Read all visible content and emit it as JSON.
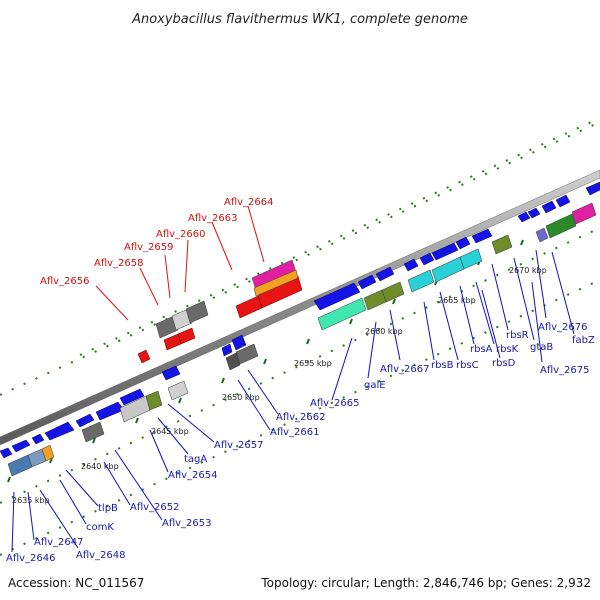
{
  "title": "Anoxybacillus flavithermus WK1, complete genome",
  "footer": {
    "accession": "Accession: NC_011567",
    "summary": "Topology: circular; Length: 2,846,746 bp; Genes: 2,932"
  },
  "ticks": [
    "2635 kbp",
    "2640 kbp",
    "2645 kbp",
    "2650 kbp",
    "2655 kbp",
    "2660 kbp",
    "2665 kbp",
    "2670 kbp"
  ],
  "labels_upper": [
    "Aflv_2656",
    "Aflv_2658",
    "Aflv_2659",
    "Aflv_2660",
    "Aflv_2663",
    "Aflv_2664"
  ],
  "labels_lower": [
    "Aflv_2646",
    "Aflv_2647",
    "Aflv_2648",
    "tlpB",
    "comK",
    "Aflv_2652",
    "Aflv_2653",
    "Aflv_2654",
    "tagA",
    "Aflv_2657",
    "Aflv_2661",
    "Aflv_2662",
    "Aflv_2665",
    "galE",
    "Aflv_2667",
    "rbsB",
    "rbsC",
    "rbsA",
    "rbsK",
    "rbsD",
    "rbsR",
    "gtaB",
    "Aflv_2675",
    "Aflv_2676",
    "fabZ"
  ],
  "colors": {
    "backbone": "#8c8c8c",
    "forward_gene": "#1414e6",
    "reverse_gene": "#e81414",
    "dots": "#2a7a1a",
    "cyan": "#2ad0d8",
    "olive": "#6e8c2a",
    "magenta": "#e020a0",
    "orange": "#f4a020",
    "grey": "#7a7a7a",
    "mint": "#40e8b0",
    "steel": "#4a7ab0"
  }
}
